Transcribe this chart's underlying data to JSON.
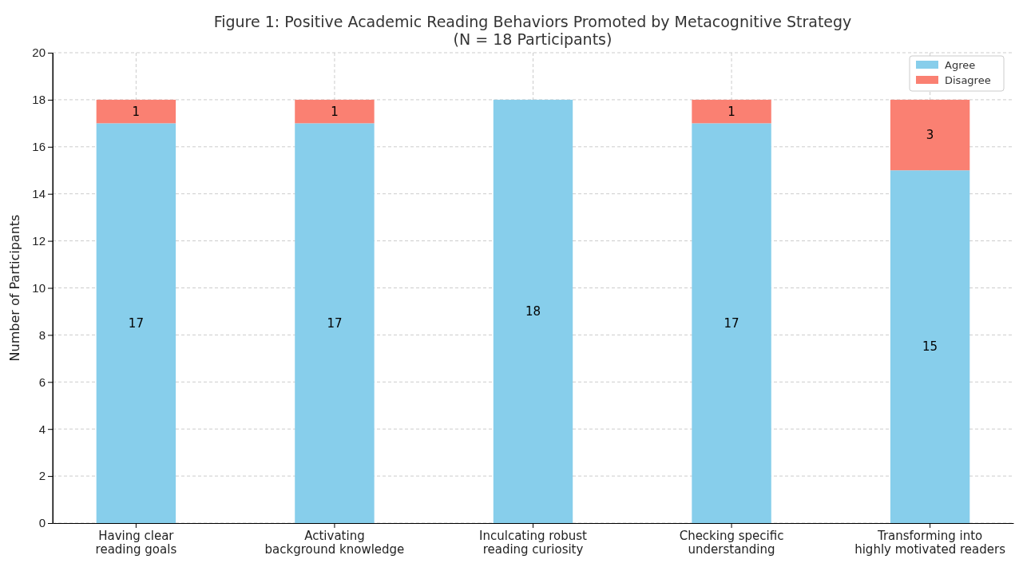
{
  "chart_data": {
    "type": "bar",
    "title": "Figure 1: Positive Academic Reading Behaviors Promoted by Metacognitive Strategy",
    "subtitle": "(N = 18 Participants)",
    "ylabel": "Number of Participants",
    "categories": [
      "Having clear\nreading goals",
      "Activating\nbackground knowledge",
      "Inculcating robust\nreading curiosity",
      "Checking specific\nunderstanding",
      "Transforming into\nhighly motivated readers"
    ],
    "series": [
      {
        "name": "Agree",
        "color": "#87ceeb",
        "values": [
          17,
          17,
          18,
          17,
          15
        ]
      },
      {
        "name": "Disagree",
        "color": "#fa8072",
        "values": [
          1,
          1,
          null,
          1,
          3
        ]
      }
    ],
    "stacked": true,
    "ylim": [
      0,
      20
    ],
    "yticks": [
      0,
      2,
      4,
      6,
      8,
      10,
      12,
      14,
      16,
      18,
      20
    ],
    "grid": true,
    "legend": "top right",
    "data_labels": true
  }
}
